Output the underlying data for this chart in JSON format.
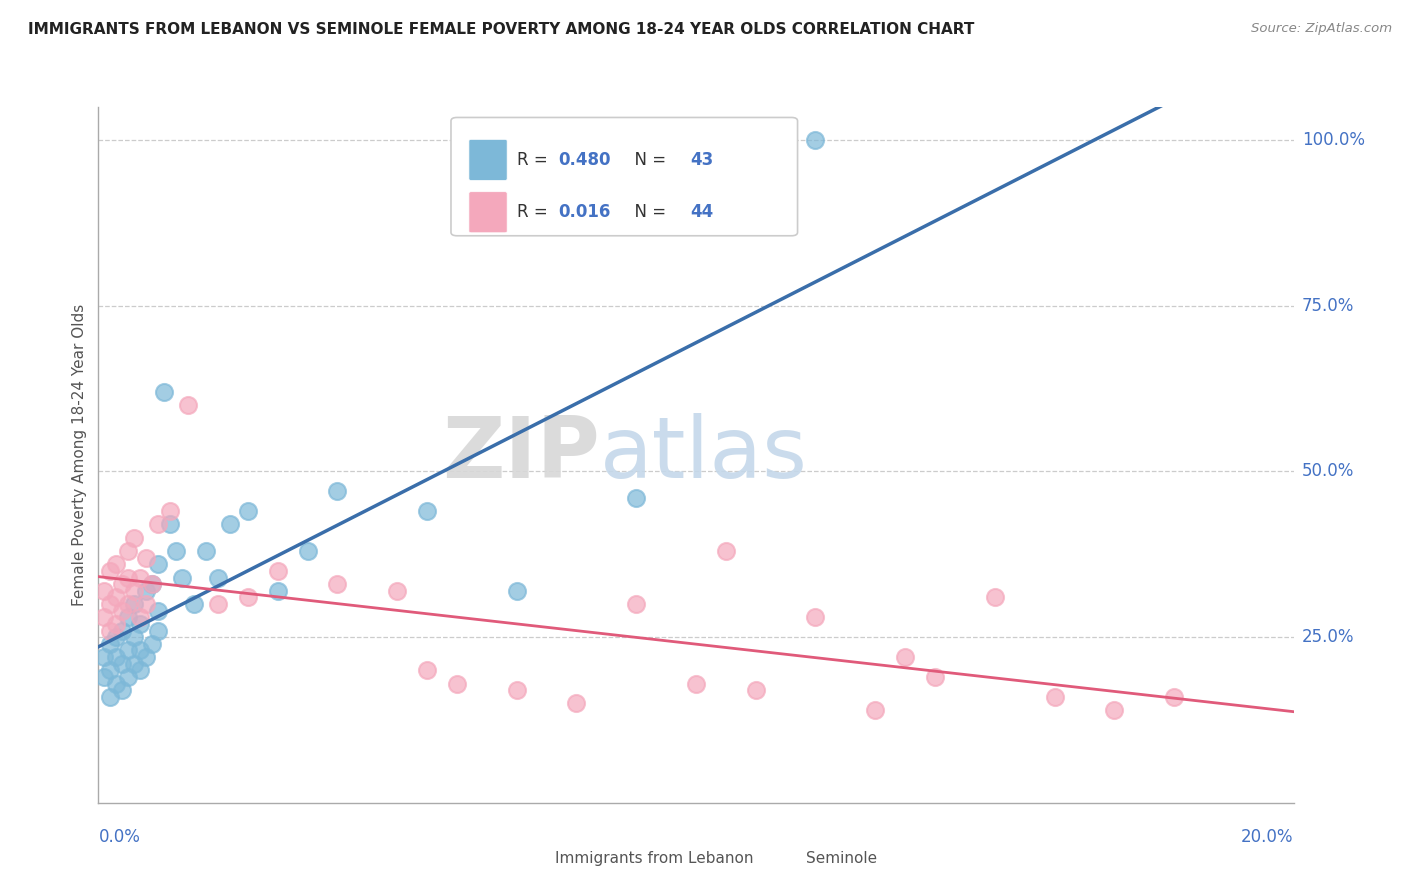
{
  "title": "IMMIGRANTS FROM LEBANON VS SEMINOLE FEMALE POVERTY AMONG 18-24 YEAR OLDS CORRELATION CHART",
  "source": "Source: ZipAtlas.com",
  "ylabel": "Female Poverty Among 18-24 Year Olds",
  "legend_blue_r": "0.480",
  "legend_blue_n": "43",
  "legend_pink_r": "0.016",
  "legend_pink_n": "44",
  "legend_label_blue": "Immigrants from Lebanon",
  "legend_label_pink": "Seminole",
  "blue_color": "#7db8d8",
  "pink_color": "#f4a8bc",
  "blue_line_color": "#3a6eaa",
  "pink_line_color": "#e05a7a",
  "watermark_zip": "ZIP",
  "watermark_atlas": "atlas",
  "blue_scatter_x": [
    0.001,
    0.001,
    0.002,
    0.002,
    0.002,
    0.003,
    0.003,
    0.003,
    0.004,
    0.004,
    0.004,
    0.005,
    0.005,
    0.005,
    0.006,
    0.006,
    0.006,
    0.007,
    0.007,
    0.007,
    0.008,
    0.008,
    0.009,
    0.009,
    0.01,
    0.01,
    0.01,
    0.011,
    0.012,
    0.013,
    0.014,
    0.016,
    0.018,
    0.02,
    0.022,
    0.025,
    0.03,
    0.035,
    0.04,
    0.055,
    0.07,
    0.09,
    0.12
  ],
  "blue_scatter_y": [
    0.19,
    0.22,
    0.16,
    0.2,
    0.24,
    0.18,
    0.22,
    0.25,
    0.17,
    0.21,
    0.26,
    0.19,
    0.23,
    0.28,
    0.21,
    0.25,
    0.3,
    0.2,
    0.23,
    0.27,
    0.22,
    0.32,
    0.24,
    0.33,
    0.26,
    0.36,
    0.29,
    0.62,
    0.42,
    0.38,
    0.34,
    0.3,
    0.38,
    0.34,
    0.42,
    0.44,
    0.32,
    0.38,
    0.47,
    0.44,
    0.32,
    0.46,
    1.0
  ],
  "pink_scatter_x": [
    0.001,
    0.001,
    0.002,
    0.002,
    0.002,
    0.003,
    0.003,
    0.003,
    0.004,
    0.004,
    0.005,
    0.005,
    0.005,
    0.006,
    0.006,
    0.007,
    0.007,
    0.008,
    0.008,
    0.009,
    0.01,
    0.012,
    0.015,
    0.02,
    0.025,
    0.03,
    0.04,
    0.05,
    0.055,
    0.06,
    0.07,
    0.08,
    0.09,
    0.1,
    0.105,
    0.11,
    0.12,
    0.13,
    0.135,
    0.14,
    0.15,
    0.16,
    0.17,
    0.18
  ],
  "pink_scatter_y": [
    0.28,
    0.32,
    0.26,
    0.3,
    0.35,
    0.27,
    0.31,
    0.36,
    0.29,
    0.33,
    0.3,
    0.34,
    0.38,
    0.32,
    0.4,
    0.28,
    0.34,
    0.3,
    0.37,
    0.33,
    0.42,
    0.44,
    0.6,
    0.3,
    0.31,
    0.35,
    0.33,
    0.32,
    0.2,
    0.18,
    0.17,
    0.15,
    0.3,
    0.18,
    0.38,
    0.17,
    0.28,
    0.14,
    0.22,
    0.19,
    0.31,
    0.16,
    0.14,
    0.16
  ],
  "xlim": [
    0.0,
    0.2
  ],
  "ylim": [
    0.0,
    1.05
  ],
  "ytick_vals": [
    0.25,
    0.5,
    0.75,
    1.0
  ],
  "ytick_labels": [
    "25.0%",
    "50.0%",
    "75.0%",
    "100.0%"
  ],
  "xtick_left_label": "0.0%",
  "xtick_right_label": "20.0%"
}
